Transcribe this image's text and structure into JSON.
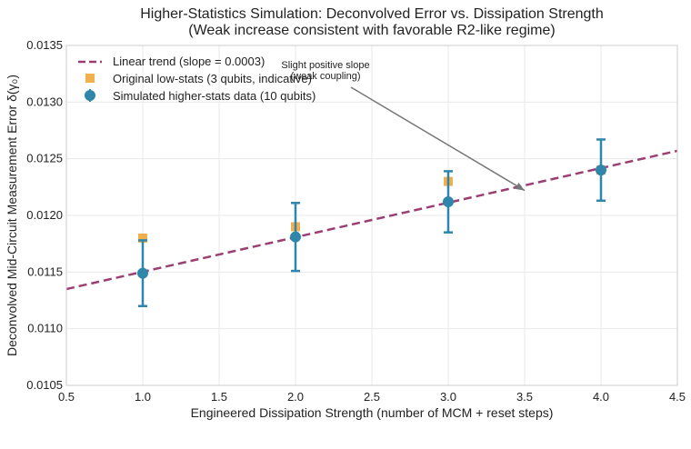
{
  "chart_data": {
    "type": "scatter",
    "title": "Higher-Statistics Simulation: Deconvolved Error vs. Dissipation Strength",
    "subtitle": "(Weak increase consistent with favorable R2-like regime)",
    "xlabel": "Engineered Dissipation Strength (number of MCM + reset steps)",
    "ylabel": "Deconvolved Mid-Circuit Measurement Error δ(γ₀)",
    "xlim": [
      0.5,
      4.5
    ],
    "ylim": [
      0.0105,
      0.0135
    ],
    "x_ticks": [
      "0.5",
      "1.0",
      "1.5",
      "2.0",
      "2.5",
      "3.0",
      "3.5",
      "4.0",
      "4.5"
    ],
    "y_ticks": [
      "0.0105",
      "0.0110",
      "0.0115",
      "0.0120",
      "0.0125",
      "0.0130",
      "0.0135"
    ],
    "grid": true,
    "legend_position": "top-left",
    "series": [
      {
        "name": "Linear trend (slope = 0.0003)",
        "kind": "line",
        "style": "dashed",
        "color": "#9b3f72",
        "x": [
          0.5,
          4.5
        ],
        "y": [
          0.01135,
          0.01257
        ]
      },
      {
        "name": "Original low-stats (3 qubits, indicative)",
        "kind": "scatter",
        "marker": "square",
        "color": "#f0a73a",
        "x": [
          1.0,
          2.0,
          3.0,
          4.0
        ],
        "y": [
          0.0118,
          0.0119,
          0.0123,
          0.0124
        ]
      },
      {
        "name": "Simulated higher-stats data (10 qubits)",
        "kind": "errorbar",
        "marker": "circle",
        "color": "#2e86ab",
        "x": [
          1.0,
          2.0,
          3.0,
          4.0
        ],
        "y": [
          0.01149,
          0.01181,
          0.01212,
          0.0124
        ],
        "yerr": [
          0.00029,
          0.0003,
          0.00027,
          0.00027
        ]
      }
    ],
    "annotations": [
      {
        "lines": [
          "Slight positive slope",
          "(weak coupling)"
        ],
        "arrow_to": [
          3.5,
          0.01222
        ]
      }
    ]
  }
}
